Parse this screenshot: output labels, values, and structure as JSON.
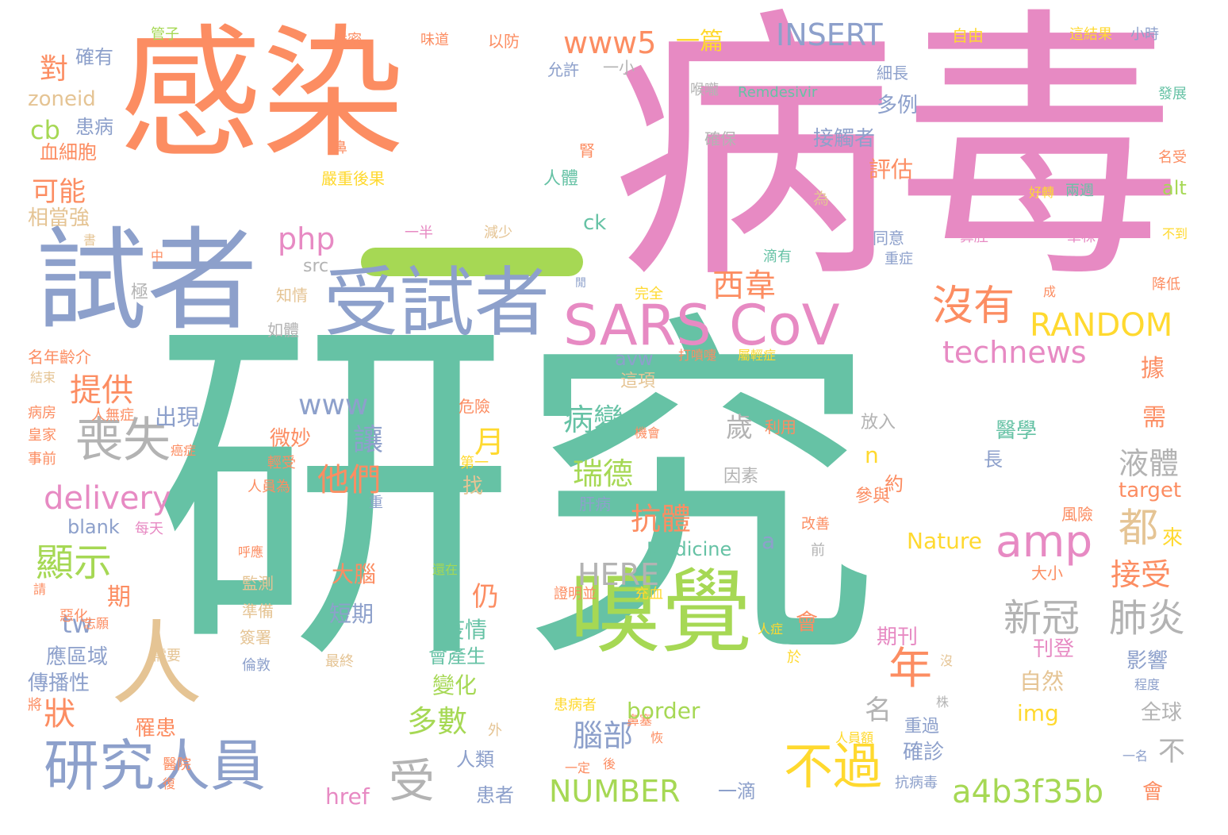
{
  "colors": {
    "teal": "#66c2a5",
    "orange": "#fc8d62",
    "blue": "#8da0cb",
    "pink": "#e78ac3",
    "green": "#a6d854",
    "yellow": "#ffd92f",
    "tan": "#e5c494",
    "gray": "#b3b3b3"
  },
  "words": [
    "研究",
    "病毒",
    "感染",
    "試者",
    "受試者",
    "嗅覺",
    "SARS CoV",
    "研究人員",
    "喪失",
    "不過",
    "a4b3f35b",
    "NUMBER",
    "amp",
    "年",
    "人",
    "沒有",
    "RANDOM",
    "technews",
    "新冠",
    "肺炎",
    "西韋",
    "php",
    "www5",
    "INSERT",
    "一篇",
    "delivery",
    "顯示",
    "提供",
    "狀",
    "受",
    "都",
    "接受",
    "液體",
    "瑞德",
    "抗體",
    "病變",
    "他們",
    "月",
    "讓",
    "www",
    "HERE",
    "Medicine",
    "多數",
    "腦部",
    "疫情",
    "變化",
    "會產生",
    "大腦",
    "短期",
    "仍",
    "blank",
    "tw",
    "應區域",
    "傳播性",
    "罹患",
    "出現",
    "微妙",
    "可能",
    "相當強",
    "對",
    "cb",
    "zoneid",
    "患病",
    "血細胞",
    "確有",
    "管子",
    "嚴密",
    "味道",
    "以防",
    "允許",
    "一小",
    "Remdesivir",
    "細長",
    "自由",
    "這結果",
    "小時",
    "喉嚨",
    "發展",
    "多例",
    "接觸者",
    "評估",
    "確保",
    "鼻",
    "腎",
    "嚴重後果",
    "人體",
    "alt",
    "ck",
    "為",
    "一半",
    "減少",
    "src",
    "滴有",
    "同意",
    "重症",
    "鼻腔",
    "單株",
    "兩週",
    "好轉",
    "名受",
    "降低",
    "不到",
    "成",
    "完全",
    "知情",
    "極",
    "書",
    "中",
    "閒",
    "如體",
    "名年齡介",
    "打噴嚏",
    "屬輕症",
    "avw",
    "這項",
    "結束",
    "病房",
    "人無症",
    "皇家",
    "事前",
    "危險",
    "利用",
    "機會",
    "癌症",
    "輕受",
    "第一",
    "因素",
    "放入",
    "找",
    "人員為",
    "肝病",
    "參與",
    "約",
    "重",
    "風險",
    "改善",
    "前",
    "Nature",
    "來",
    "每天",
    "呼應",
    "還在",
    "請",
    "惡化",
    "志願",
    "期",
    "監測",
    "證明並",
    "充血",
    "準備",
    "簽署",
    "需要",
    "將",
    "最終",
    "人症",
    "會",
    "倫敦",
    "鼻塞",
    "於",
    "期刊",
    "刊登",
    "自然",
    "影響",
    "程度",
    "沒",
    "全球",
    "患病者",
    "株",
    "外",
    "border",
    "img",
    "名",
    "重過",
    "確診",
    "恢",
    "人員額",
    "醫院",
    "復",
    "一定",
    "後",
    "人類",
    "患者",
    "一滴",
    "href",
    "抗病毒",
    "一名",
    "不",
    "會",
    "長",
    "醫學",
    "需",
    "據",
    "大小",
    "target",
    "n",
    "歲",
    "a",
    "一滴"
  ]
}
